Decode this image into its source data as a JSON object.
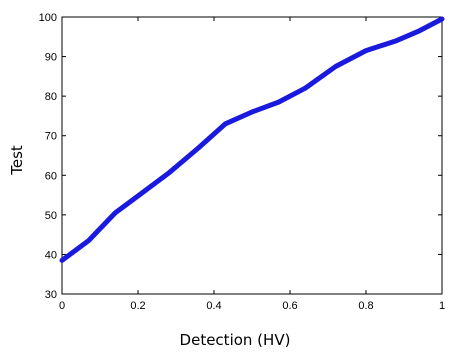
{
  "chart_data": {
    "type": "line",
    "title": "",
    "xlabel": "Detection (HV)",
    "ylabel": "Test",
    "xlim": [
      0,
      1
    ],
    "ylim": [
      30,
      100
    ],
    "grid": false,
    "xticks": [
      "0",
      "0.2",
      "0.4",
      "0.6",
      "0.8",
      "1"
    ],
    "xtick_values": [
      0,
      0.2,
      0.4,
      0.6,
      0.8,
      1
    ],
    "yticks": [
      "30",
      "40",
      "50",
      "60",
      "70",
      "80",
      "90",
      "100"
    ],
    "ytick_values": [
      30,
      40,
      50,
      60,
      70,
      80,
      90,
      100
    ],
    "series": [
      {
        "color": "#1a1adf",
        "x": [
          0,
          0.07,
          0.14,
          0.21,
          0.28,
          0.36,
          0.43,
          0.5,
          0.57,
          0.64,
          0.72,
          0.8,
          0.88,
          0.94,
          1.0
        ],
        "y": [
          38.5,
          43.5,
          50.5,
          55.5,
          60.5,
          67,
          73,
          76,
          78.5,
          82,
          87.5,
          91.5,
          94,
          96.5,
          99.5
        ]
      }
    ]
  }
}
